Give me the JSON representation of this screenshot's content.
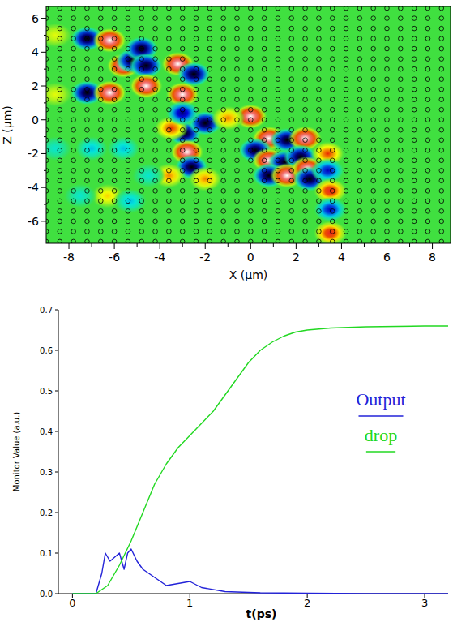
{
  "chart_data": [
    {
      "type": "field_map",
      "x_label": "X (µm)",
      "y_label": "Z (µm)",
      "xlim": [
        -9,
        8.8
      ],
      "ylim": [
        -7.3,
        6.7
      ],
      "xticks": [
        -8,
        -6,
        -4,
        -2,
        0,
        2,
        4,
        6,
        8
      ],
      "yticks": [
        -6,
        -4,
        -2,
        0,
        2,
        4,
        6
      ],
      "lattice_constant": 0.6,
      "spots": {
        "x": [
          -7.2,
          -6.2,
          -7.2,
          -6.2,
          -5.6,
          -5.2,
          -4.8,
          -4.6,
          -4.6,
          -3.2,
          -2.5,
          -3.0,
          -2.9,
          -2.0,
          -3.5,
          -2.8,
          -2.6,
          -3.6,
          -2.0,
          0.0,
          -1.0,
          0.8,
          1.6,
          0.2,
          2.4,
          0.8,
          1.5,
          2.2,
          0.8,
          1.6,
          2.5,
          3.4,
          2.6,
          3.4,
          3.5,
          3.5,
          3.5,
          -5.6,
          -7.0,
          -6.3,
          -5.3,
          -7.5,
          -8.6,
          -8.6,
          -8.6,
          -4.5,
          -3.0
        ],
        "y": [
          4.8,
          4.7,
          1.6,
          1.6,
          3.2,
          3.5,
          4.2,
          3.2,
          2.0,
          3.3,
          2.7,
          1.5,
          -0.8,
          -0.2,
          -0.5,
          -1.9,
          -2.8,
          -3.3,
          -3.5,
          0.2,
          0.1,
          -1.1,
          -1.2,
          -1.8,
          -1.1,
          -2.4,
          -2.5,
          -2.2,
          -3.3,
          -3.3,
          -2.9,
          -2.0,
          -3.5,
          -3.0,
          -4.2,
          -5.3,
          -6.7,
          -1.7,
          -1.7,
          -4.5,
          -4.8,
          -4.5,
          5.0,
          1.5,
          -1.7,
          -3.3,
          0.4
        ],
        "values": [
          -1,
          1,
          -1,
          1,
          1,
          -1,
          -1,
          -1,
          1,
          1,
          -1,
          1,
          -1,
          -1,
          0.6,
          1,
          -1,
          0.5,
          0.5,
          1,
          0.5,
          1,
          -1,
          -1,
          1,
          1,
          -1,
          -1,
          -1,
          1,
          1,
          0.6,
          -1,
          -0.7,
          0.7,
          -0.7,
          0.7,
          -0.4,
          -0.4,
          0.4,
          -0.4,
          -0.3,
          0.3,
          0.3,
          -0.3,
          -0.3,
          -0.8
        ]
      }
    },
    {
      "type": "line",
      "x_label": "t(ps)",
      "y_label": "Monitor Value (a.u.)",
      "xlim": [
        -0.12,
        3.2
      ],
      "ylim": [
        0,
        0.7
      ],
      "xticks": [
        0,
        1,
        2,
        3
      ],
      "yticks": [
        {
          "value": 0,
          "label": "0.0"
        },
        {
          "value": 0.1,
          "label": "0.1"
        },
        {
          "value": 0.2,
          "label": "0.2"
        },
        {
          "value": 0.3,
          "label": "0.3"
        },
        {
          "value": 0.4,
          "label": "0.4"
        },
        {
          "value": 0.5,
          "label": "0.5"
        },
        {
          "value": 0.6,
          "label": "0.6"
        },
        {
          "value": 0.7,
          "label": "0.7"
        }
      ],
      "legend": "right",
      "series": [
        {
          "name": "Output",
          "color": "#2222d8",
          "x": [
            0,
            0.2,
            0.25,
            0.28,
            0.32,
            0.36,
            0.4,
            0.44,
            0.47,
            0.5,
            0.55,
            0.6,
            0.7,
            0.8,
            0.9,
            1.0,
            1.1,
            1.3,
            1.6,
            2.0,
            2.5,
            3.2
          ],
          "values": [
            0,
            0,
            0.05,
            0.1,
            0.08,
            0.09,
            0.1,
            0.06,
            0.1,
            0.11,
            0.08,
            0.06,
            0.04,
            0.02,
            0.025,
            0.03,
            0.015,
            0.005,
            0.002,
            0.001,
            0,
            0
          ]
        },
        {
          "name": "drop",
          "color": "#22d822",
          "x": [
            0,
            0.2,
            0.3,
            0.4,
            0.5,
            0.6,
            0.7,
            0.8,
            0.9,
            1.0,
            1.1,
            1.2,
            1.3,
            1.4,
            1.5,
            1.6,
            1.7,
            1.8,
            1.9,
            2.0,
            2.2,
            2.5,
            3.0,
            3.2
          ],
          "values": [
            0,
            0,
            0.02,
            0.07,
            0.13,
            0.2,
            0.27,
            0.32,
            0.36,
            0.39,
            0.42,
            0.45,
            0.49,
            0.53,
            0.57,
            0.6,
            0.62,
            0.635,
            0.645,
            0.65,
            0.655,
            0.658,
            0.66,
            0.66
          ]
        }
      ]
    }
  ]
}
